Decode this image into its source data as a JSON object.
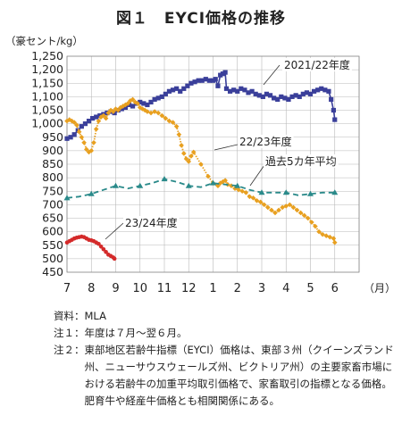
{
  "chart_data": {
    "type": "line",
    "title": "図１　EYCI価格の推移",
    "unit_label": "（豪セント/kg）",
    "x_unit": "（月）",
    "months": [
      "7",
      "8",
      "9",
      "10",
      "11",
      "12",
      "1",
      "2",
      "3",
      "4",
      "5",
      "6"
    ],
    "y_ticks": [
      "1,250",
      "1,200",
      "1,150",
      "1,100",
      "1,050",
      "1,000",
      "950",
      "900",
      "850",
      "800",
      "750",
      "700",
      "650",
      "600",
      "550",
      "500",
      "450"
    ],
    "ylim": [
      450,
      1250
    ],
    "grid": true,
    "series": [
      {
        "name": "2021/22年度",
        "color": "#3a3f9a",
        "marker": "square",
        "line": "solid",
        "points": [
          [
            0,
            945
          ],
          [
            0.15,
            950
          ],
          [
            0.3,
            960
          ],
          [
            0.45,
            975
          ],
          [
            0.6,
            990
          ],
          [
            0.75,
            1000
          ],
          [
            0.9,
            1010
          ],
          [
            1.05,
            1020
          ],
          [
            1.2,
            1025
          ],
          [
            1.35,
            1030
          ],
          [
            1.5,
            1035
          ],
          [
            1.65,
            1040
          ],
          [
            1.8,
            1045
          ],
          [
            1.95,
            1040
          ],
          [
            2.1,
            1050
          ],
          [
            2.25,
            1055
          ],
          [
            2.4,
            1060
          ],
          [
            2.55,
            1070
          ],
          [
            2.7,
            1065
          ],
          [
            2.85,
            1075
          ],
          [
            3.0,
            1080
          ],
          [
            3.15,
            1075
          ],
          [
            3.3,
            1070
          ],
          [
            3.45,
            1080
          ],
          [
            3.6,
            1090
          ],
          [
            3.75,
            1095
          ],
          [
            3.9,
            1100
          ],
          [
            4.05,
            1110
          ],
          [
            4.2,
            1120
          ],
          [
            4.35,
            1125
          ],
          [
            4.5,
            1130
          ],
          [
            4.65,
            1120
          ],
          [
            4.8,
            1130
          ],
          [
            4.95,
            1140
          ],
          [
            5.1,
            1150
          ],
          [
            5.25,
            1155
          ],
          [
            5.4,
            1160
          ],
          [
            5.55,
            1160
          ],
          [
            5.7,
            1165
          ],
          [
            5.85,
            1160
          ],
          [
            6.0,
            1160
          ],
          [
            6.1,
            1165
          ],
          [
            6.2,
            1140
          ],
          [
            6.3,
            1180
          ],
          [
            6.4,
            1185
          ],
          [
            6.5,
            1190
          ],
          [
            6.55,
            1130
          ],
          [
            6.7,
            1120
          ],
          [
            6.85,
            1125
          ],
          [
            7.0,
            1120
          ],
          [
            7.15,
            1130
          ],
          [
            7.3,
            1125
          ],
          [
            7.45,
            1115
          ],
          [
            7.6,
            1120
          ],
          [
            7.75,
            1110
          ],
          [
            7.9,
            1105
          ],
          [
            8.05,
            1100
          ],
          [
            8.2,
            1110
          ],
          [
            8.35,
            1105
          ],
          [
            8.5,
            1095
          ],
          [
            8.65,
            1090
          ],
          [
            8.8,
            1100
          ],
          [
            8.95,
            1095
          ],
          [
            9.1,
            1090
          ],
          [
            9.25,
            1100
          ],
          [
            9.4,
            1105
          ],
          [
            9.55,
            1100
          ],
          [
            9.7,
            1110
          ],
          [
            9.85,
            1115
          ],
          [
            10.0,
            1110
          ],
          [
            10.15,
            1120
          ],
          [
            10.3,
            1125
          ],
          [
            10.45,
            1130
          ],
          [
            10.6,
            1125
          ],
          [
            10.75,
            1120
          ],
          [
            10.85,
            1090
          ],
          [
            10.95,
            1050
          ],
          [
            11.0,
            1015
          ]
        ]
      },
      {
        "name": "22/23年度",
        "color": "#e8a020",
        "marker": "diamond",
        "line": "dotted",
        "points": [
          [
            0,
            1010
          ],
          [
            0.1,
            1015
          ],
          [
            0.2,
            1010
          ],
          [
            0.3,
            1005
          ],
          [
            0.4,
            995
          ],
          [
            0.5,
            970
          ],
          [
            0.6,
            950
          ],
          [
            0.7,
            930
          ],
          [
            0.8,
            905
          ],
          [
            0.9,
            895
          ],
          [
            1.0,
            900
          ],
          [
            1.1,
            930
          ],
          [
            1.2,
            980
          ],
          [
            1.3,
            1010
          ],
          [
            1.4,
            1025
          ],
          [
            1.5,
            1030
          ],
          [
            1.6,
            1020
          ],
          [
            1.7,
            1040
          ],
          [
            1.8,
            1050
          ],
          [
            1.9,
            1045
          ],
          [
            2.0,
            1055
          ],
          [
            2.1,
            1050
          ],
          [
            2.2,
            1060
          ],
          [
            2.3,
            1065
          ],
          [
            2.4,
            1070
          ],
          [
            2.5,
            1075
          ],
          [
            2.6,
            1085
          ],
          [
            2.7,
            1090
          ],
          [
            2.8,
            1080
          ],
          [
            2.9,
            1075
          ],
          [
            3.0,
            1060
          ],
          [
            3.1,
            1055
          ],
          [
            3.2,
            1050
          ],
          [
            3.3,
            1045
          ],
          [
            3.45,
            1040
          ],
          [
            3.6,
            1045
          ],
          [
            3.75,
            1040
          ],
          [
            3.9,
            1030
          ],
          [
            4.05,
            1020
          ],
          [
            4.2,
            1010
          ],
          [
            4.35,
            1005
          ],
          [
            4.5,
            990
          ],
          [
            4.6,
            960
          ],
          [
            4.7,
            920
          ],
          [
            4.8,
            890
          ],
          [
            4.9,
            870
          ],
          [
            5.0,
            860
          ],
          [
            5.1,
            880
          ],
          [
            5.2,
            895
          ],
          [
            5.5,
            850
          ],
          [
            5.8,
            805
          ],
          [
            6.0,
            780
          ],
          [
            6.2,
            770
          ],
          [
            6.3,
            780
          ],
          [
            6.4,
            785
          ],
          [
            6.5,
            790
          ],
          [
            6.6,
            775
          ],
          [
            6.75,
            770
          ],
          [
            6.9,
            760
          ],
          [
            7.05,
            755
          ],
          [
            7.2,
            750
          ],
          [
            7.35,
            745
          ],
          [
            7.5,
            730
          ],
          [
            7.65,
            725
          ],
          [
            7.8,
            715
          ],
          [
            7.95,
            710
          ],
          [
            8.1,
            700
          ],
          [
            8.25,
            690
          ],
          [
            8.4,
            680
          ],
          [
            8.55,
            670
          ],
          [
            8.7,
            680
          ],
          [
            8.85,
            690
          ],
          [
            9.0,
            695
          ],
          [
            9.15,
            700
          ],
          [
            9.3,
            690
          ],
          [
            9.45,
            680
          ],
          [
            9.6,
            670
          ],
          [
            9.75,
            660
          ],
          [
            9.9,
            650
          ],
          [
            10.05,
            635
          ],
          [
            10.2,
            620
          ],
          [
            10.35,
            600
          ],
          [
            10.5,
            590
          ],
          [
            10.65,
            585
          ],
          [
            10.8,
            580
          ],
          [
            10.95,
            575
          ],
          [
            11.0,
            560
          ]
        ]
      },
      {
        "name": "過去5カ年平均",
        "color": "#2a8a8a",
        "marker": "triangle",
        "line": "dashed",
        "points": [
          [
            0,
            725
          ],
          [
            0.5,
            730
          ],
          [
            1,
            740
          ],
          [
            1.5,
            755
          ],
          [
            2,
            770
          ],
          [
            2.5,
            760
          ],
          [
            3,
            770
          ],
          [
            3.5,
            780
          ],
          [
            4,
            795
          ],
          [
            4.5,
            785
          ],
          [
            5,
            770
          ],
          [
            5.5,
            765
          ],
          [
            6,
            780
          ],
          [
            6.5,
            775
          ],
          [
            7,
            770
          ],
          [
            7.5,
            755
          ],
          [
            8,
            745
          ],
          [
            8.5,
            745
          ],
          [
            9,
            745
          ],
          [
            9.5,
            735
          ],
          [
            10,
            740
          ],
          [
            10.5,
            745
          ],
          [
            11,
            745
          ]
        ]
      },
      {
        "name": "23/24年度",
        "color": "#d42a2a",
        "marker": "circle",
        "line": "dotted",
        "points": [
          [
            0,
            560
          ],
          [
            0.1,
            565
          ],
          [
            0.2,
            570
          ],
          [
            0.3,
            575
          ],
          [
            0.4,
            578
          ],
          [
            0.5,
            580
          ],
          [
            0.6,
            582
          ],
          [
            0.7,
            580
          ],
          [
            0.8,
            575
          ],
          [
            0.9,
            570
          ],
          [
            1.0,
            568
          ],
          [
            1.1,
            565
          ],
          [
            1.2,
            560
          ],
          [
            1.3,
            555
          ],
          [
            1.4,
            545
          ],
          [
            1.5,
            535
          ],
          [
            1.6,
            525
          ],
          [
            1.7,
            515
          ],
          [
            1.8,
            510
          ],
          [
            1.9,
            505
          ],
          [
            1.95,
            500
          ]
        ]
      }
    ]
  },
  "notes": [
    {
      "key": "資料：",
      "text": "MLA"
    },
    {
      "key": "注１：",
      "text": "年度は７月～翌６月。"
    },
    {
      "key": "注２：",
      "text": "東部地区若齢牛指標（EYCI）価格は、東部３州（クイーンズランド州、ニューサウスウェールズ州、ビクトリア州）の主要家畜市場における若齢牛の加重平均取引価格で、家畜取引の指標となる価格。肥育牛や経産牛価格とも相関関係にある。"
    }
  ]
}
